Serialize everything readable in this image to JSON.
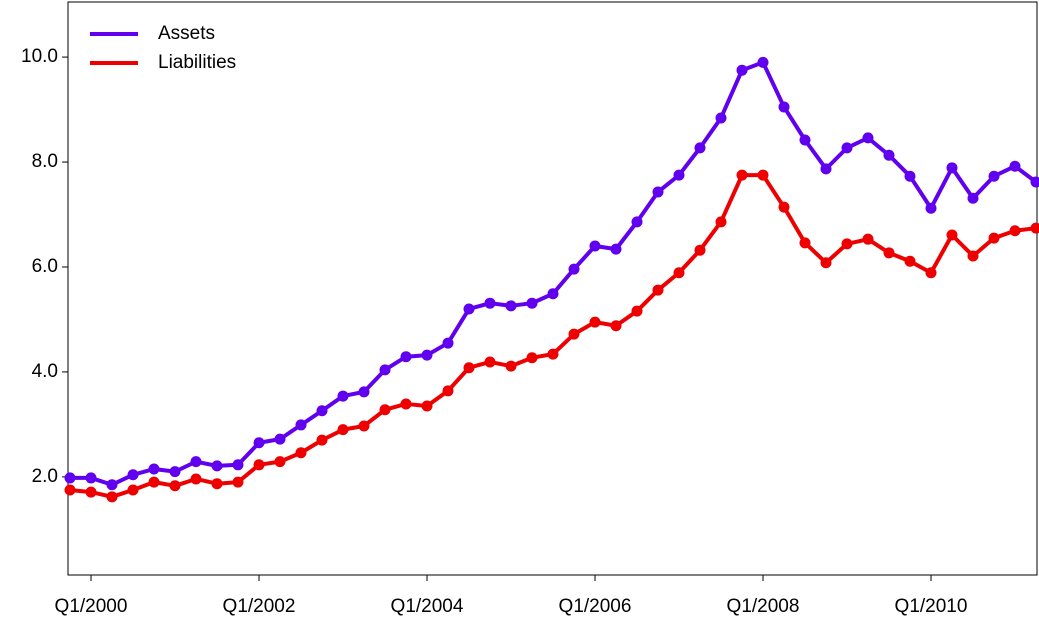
{
  "chart_data": {
    "type": "line",
    "categories": [
      null,
      "Q1/2000",
      null,
      null,
      null,
      null,
      null,
      null,
      null,
      "Q1/2002",
      null,
      null,
      null,
      null,
      null,
      null,
      null,
      "Q1/2004",
      null,
      null,
      null,
      null,
      null,
      null,
      null,
      "Q1/2006",
      null,
      null,
      null,
      null,
      null,
      null,
      null,
      "Q1/2008",
      null,
      null,
      null,
      null,
      null,
      null,
      null,
      "Q1/2010",
      null,
      null,
      null,
      null,
      null
    ],
    "series": [
      {
        "name": "Assets",
        "color": "#6000ee",
        "values": [
          1.98,
          1.98,
          1.85,
          2.04,
          2.15,
          2.1,
          2.29,
          2.21,
          2.23,
          2.65,
          2.72,
          2.99,
          3.26,
          3.54,
          3.62,
          4.04,
          4.29,
          4.32,
          4.55,
          5.2,
          5.31,
          5.26,
          5.31,
          5.49,
          5.96,
          6.4,
          6.34,
          6.86,
          7.43,
          7.75,
          8.27,
          8.84,
          9.75,
          9.9,
          9.05,
          8.42,
          7.87,
          8.27,
          8.46,
          8.13,
          7.73,
          7.12,
          7.89,
          7.31,
          7.73,
          7.92,
          7.62
        ]
      },
      {
        "name": "Liabilities",
        "color": "#ee0000",
        "values": [
          1.75,
          1.71,
          1.62,
          1.75,
          1.9,
          1.83,
          1.96,
          1.87,
          1.9,
          2.23,
          2.29,
          2.46,
          2.7,
          2.9,
          2.97,
          3.28,
          3.39,
          3.35,
          3.64,
          4.08,
          4.19,
          4.11,
          4.27,
          4.34,
          4.72,
          4.95,
          4.88,
          5.16,
          5.56,
          5.89,
          6.32,
          6.86,
          7.75,
          7.75,
          7.14,
          6.46,
          6.08,
          6.44,
          6.53,
          6.27,
          6.11,
          5.89,
          6.61,
          6.21,
          6.55,
          6.69,
          6.74
        ]
      }
    ],
    "ylim": [
      0.13,
      11.05
    ],
    "yticks": [
      {
        "value": 2,
        "label": "2.0"
      },
      {
        "value": 4,
        "label": "4.0"
      },
      {
        "value": 6,
        "label": "6.0"
      },
      {
        "value": 8,
        "label": "8.0"
      },
      {
        "value": 10,
        "label": "10.0"
      }
    ],
    "legend": "top-left"
  }
}
